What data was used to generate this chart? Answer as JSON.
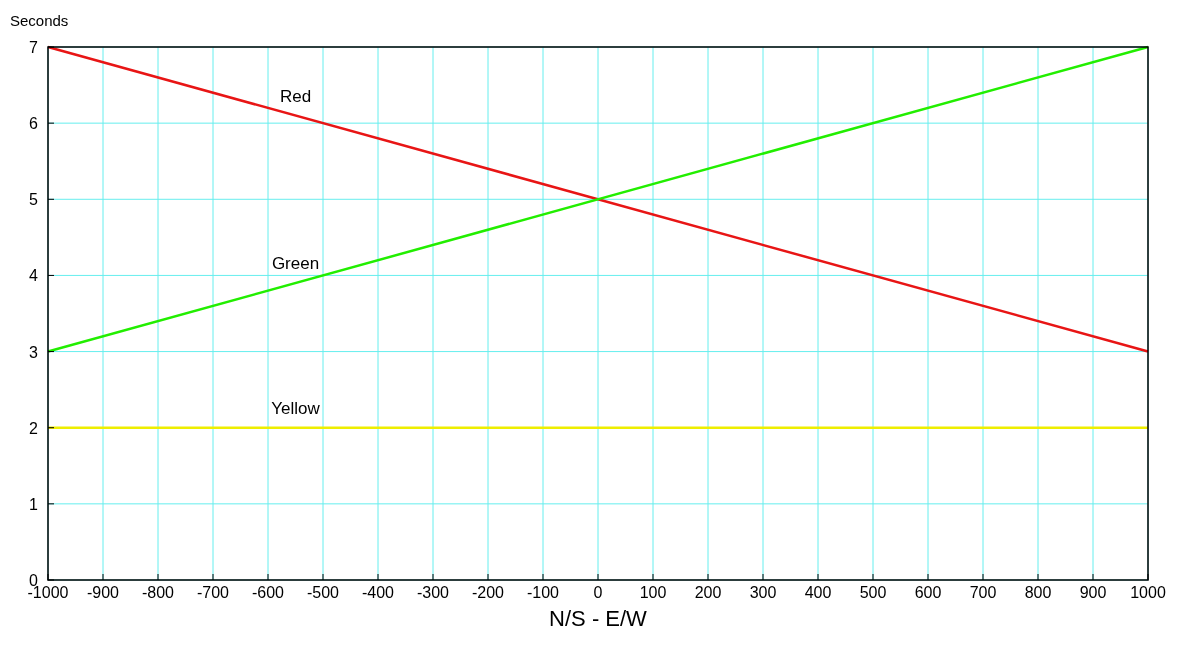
{
  "chart_data": {
    "type": "line",
    "ylabel": "Seconds",
    "xlabel": "N/S - E/W",
    "xlim": [
      -1000,
      1000
    ],
    "xticks": [
      -1000,
      -900,
      -800,
      -700,
      -600,
      -500,
      -400,
      -300,
      -200,
      -100,
      0,
      100,
      200,
      300,
      400,
      500,
      600,
      700,
      800,
      900,
      1000
    ],
    "ylim": [
      0,
      7
    ],
    "yticks": [
      0,
      1,
      2,
      3,
      4,
      5,
      6,
      7
    ],
    "grid": true,
    "marker": "none",
    "line_style": "solid",
    "x": [
      -1000,
      1000
    ],
    "series": [
      {
        "name": "Red",
        "color": "#e81515",
        "values": [
          7,
          3
        ]
      },
      {
        "name": "Green",
        "color": "#22ee00",
        "values": [
          3,
          7
        ]
      },
      {
        "name": "Yellow",
        "color": "#eeee00",
        "values": [
          2,
          2
        ]
      }
    ]
  }
}
